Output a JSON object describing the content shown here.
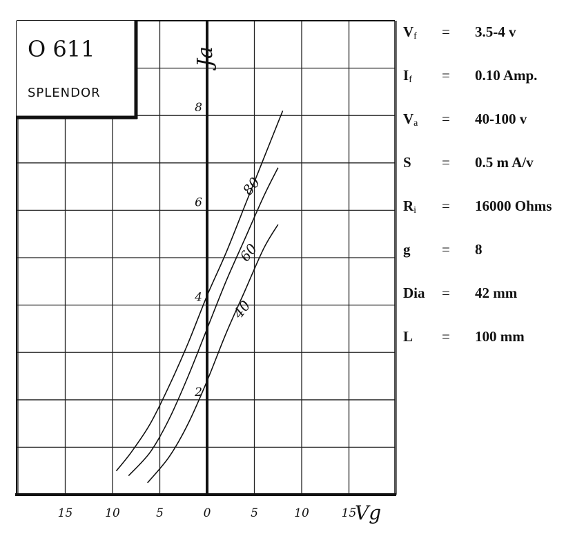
{
  "chart_data": {
    "type": "line",
    "title_box": {
      "type_code": "O 611",
      "maker": "SPLENDOR"
    },
    "xlabel": "Vg",
    "ylabel": "Ja",
    "xlim": [
      -20,
      20
    ],
    "ylim": [
      0,
      10
    ],
    "x_ticks": [
      {
        "value": -15,
        "label": "15"
      },
      {
        "value": -10,
        "label": "10"
      },
      {
        "value": -5,
        "label": "5"
      },
      {
        "value": 0,
        "label": "0"
      },
      {
        "value": 5,
        "label": "5"
      },
      {
        "value": 10,
        "label": "10"
      },
      {
        "value": 15,
        "label": "15"
      }
    ],
    "y_ticks": [
      {
        "value": 2,
        "label": "2"
      },
      {
        "value": 4,
        "label": "4"
      },
      {
        "value": 6,
        "label": "6"
      },
      {
        "value": 8,
        "label": "8"
      }
    ],
    "grid": true,
    "series": [
      {
        "name": "80",
        "x": [
          -9.6,
          -8,
          -6,
          -4,
          -2,
          0,
          2,
          4,
          6,
          8
        ],
        "y": [
          0.5,
          0.9,
          1.5,
          2.3,
          3.2,
          4.2,
          5.1,
          6.1,
          7.1,
          8.1
        ]
      },
      {
        "name": "60",
        "x": [
          -8.3,
          -6,
          -4,
          -2,
          0,
          2,
          4,
          6,
          7.5
        ],
        "y": [
          0.4,
          0.9,
          1.6,
          2.5,
          3.5,
          4.5,
          5.4,
          6.3,
          6.9
        ]
      },
      {
        "name": "40",
        "x": [
          -6.3,
          -4,
          -2,
          0,
          2,
          4,
          6,
          7.5
        ],
        "y": [
          0.25,
          0.8,
          1.5,
          2.4,
          3.4,
          4.3,
          5.2,
          5.7
        ]
      }
    ]
  },
  "specs": [
    {
      "name": "V",
      "sub": "f",
      "value": "3.5-4 v"
    },
    {
      "name": "I",
      "sub": "f",
      "value": "0.10 Amp."
    },
    {
      "name": "V",
      "sub": "a",
      "value": "40-100 v"
    },
    {
      "name": "S",
      "sub": "",
      "value": "0.5 m A/v"
    },
    {
      "name": "R",
      "sub": "i",
      "value": "16000 Ohms"
    },
    {
      "name": "g",
      "sub": "",
      "value": "8"
    },
    {
      "name": "Dia",
      "sub": "",
      "value": "42 mm"
    },
    {
      "name": "L",
      "sub": "",
      "value": "100 mm"
    }
  ],
  "eq_sign": "="
}
